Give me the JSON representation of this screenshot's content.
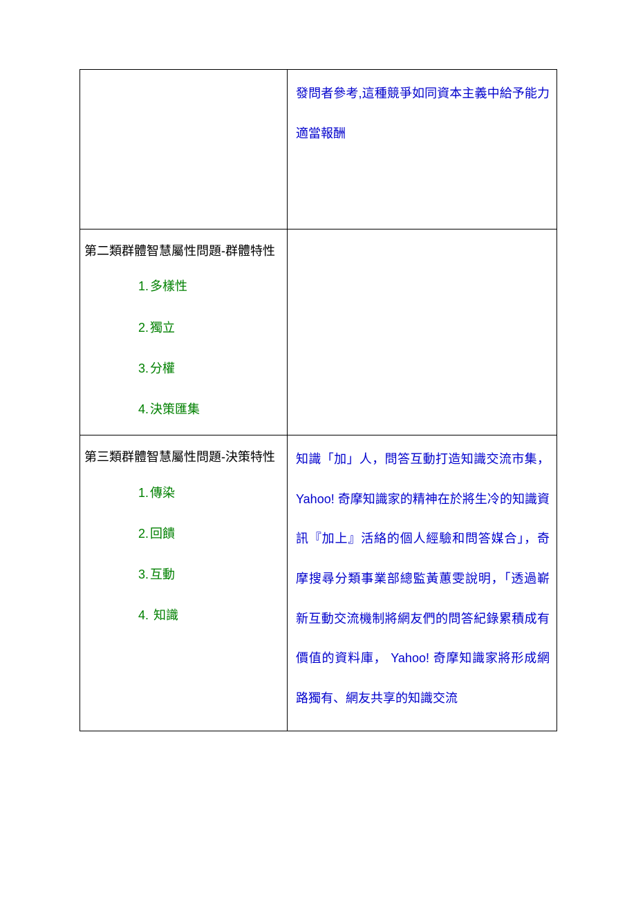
{
  "colors": {
    "heading": "#000000",
    "list": "#008000",
    "body": "#0000cc",
    "border": "#000000",
    "background": "#ffffff"
  },
  "font_sizes": {
    "heading": 18,
    "list": 18,
    "body": 18
  },
  "rows": [
    {
      "left_heading": "",
      "left_items": [],
      "right_text": "發問者參考,這種競爭如同資本主義中給予能力適當報酬"
    },
    {
      "left_heading": "第二類群體智慧屬性問題-群體特性",
      "left_items": [
        "多樣性",
        "獨立",
        "分權",
        "決策匯集"
      ],
      "right_text": ""
    },
    {
      "left_heading": "第三類群體智慧屬性問題-決策特性",
      "left_items": [
        "傳染",
        "回饋",
        "互動",
        " 知識"
      ],
      "right_text": "知識「加」人，問答互動打造知識交流市集， Yahoo! 奇摩知識家的精神在於將生冷的知識資訊『加上』活絡的個人經驗和問答媒合」，奇摩搜尋分類事業部總監黃蕙雯說明，「透過嶄新互動交流機制將網友們的問答紀錄累積成有價值的資料庫， Yahoo! 奇摩知識家將形成網路獨有、網友共享的知識交流"
    }
  ]
}
